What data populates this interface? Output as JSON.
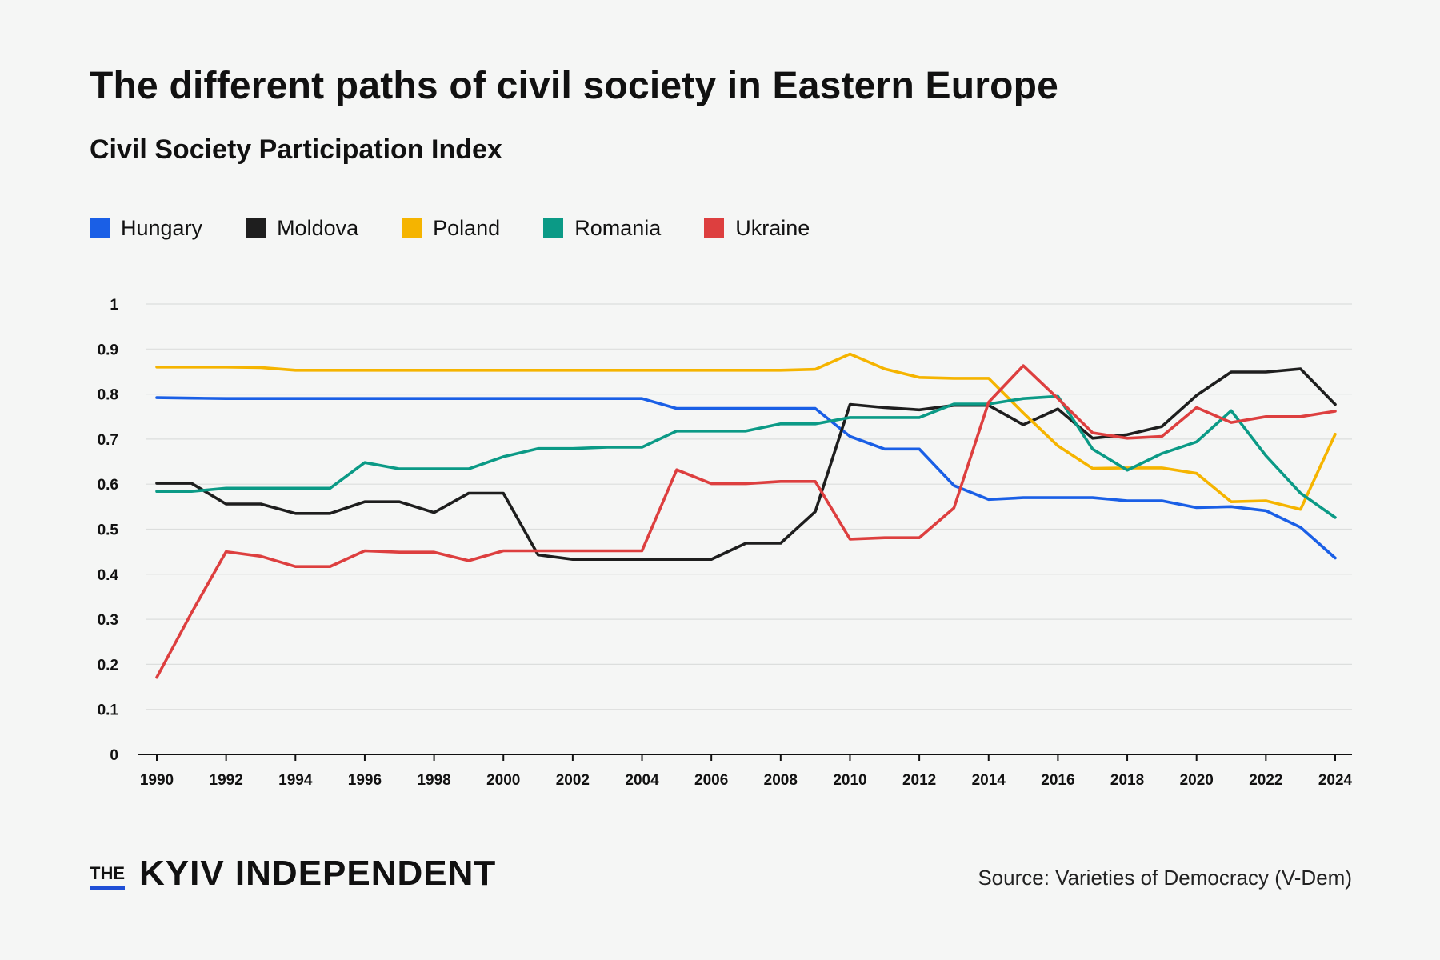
{
  "header": {
    "title": "The different paths of civil society in Eastern Europe",
    "subtitle": "Civil Society Participation Index"
  },
  "footer": {
    "logo_the": "THE",
    "logo_name": "KYIV INDEPENDENT",
    "source": "Source: Varieties of Democracy (V-Dem)"
  },
  "chart_data": {
    "type": "line",
    "title": "Civil Society Participation Index",
    "x": [
      1990,
      1991,
      1992,
      1993,
      1994,
      1995,
      1996,
      1997,
      1998,
      1999,
      2000,
      2001,
      2002,
      2003,
      2004,
      2005,
      2006,
      2007,
      2008,
      2009,
      2010,
      2011,
      2012,
      2013,
      2014,
      2015,
      2016,
      2017,
      2018,
      2019,
      2020,
      2021,
      2022,
      2023,
      2024
    ],
    "xticks": [
      1990,
      1992,
      1994,
      1996,
      1998,
      2000,
      2002,
      2004,
      2006,
      2008,
      2010,
      2012,
      2014,
      2016,
      2018,
      2020,
      2022,
      2024
    ],
    "yticks": [
      {
        "v": 0,
        "label": "0"
      },
      {
        "v": 0.1,
        "label": "0.1"
      },
      {
        "v": 0.2,
        "label": "0.2"
      },
      {
        "v": 0.3,
        "label": "0.3"
      },
      {
        "v": 0.4,
        "label": "0.4"
      },
      {
        "v": 0.5,
        "label": "0.5"
      },
      {
        "v": 0.6,
        "label": "0.6"
      },
      {
        "v": 0.7,
        "label": "0.7"
      },
      {
        "v": 0.8,
        "label": "0.8"
      },
      {
        "v": 0.9,
        "label": "0.9"
      },
      {
        "v": 1,
        "label": "1"
      }
    ],
    "ylim": [
      0,
      1
    ],
    "grid": true,
    "legend_position": "top-left",
    "series": [
      {
        "name": "Hungary",
        "color": "#1a5fe6",
        "values": [
          0.792,
          0.791,
          0.79,
          0.79,
          0.79,
          0.79,
          0.79,
          0.79,
          0.79,
          0.79,
          0.79,
          0.79,
          0.79,
          0.79,
          0.79,
          0.768,
          0.768,
          0.768,
          0.768,
          0.768,
          0.706,
          0.678,
          0.678,
          0.597,
          0.566,
          0.57,
          0.57,
          0.57,
          0.563,
          0.563,
          0.548,
          0.55,
          0.541,
          0.504,
          0.436
        ]
      },
      {
        "name": "Moldova",
        "color": "#1e1e1e",
        "values": [
          0.602,
          0.602,
          0.556,
          0.556,
          0.535,
          0.535,
          0.561,
          0.561,
          0.537,
          0.58,
          0.58,
          0.443,
          0.433,
          0.433,
          0.433,
          0.433,
          0.433,
          0.469,
          0.469,
          0.539,
          0.777,
          0.77,
          0.765,
          0.775,
          0.775,
          0.732,
          0.767,
          0.702,
          0.71,
          0.728,
          0.797,
          0.849,
          0.849,
          0.856,
          0.777
        ]
      },
      {
        "name": "Poland",
        "color": "#f5b400",
        "values": [
          0.86,
          0.86,
          0.86,
          0.859,
          0.853,
          0.853,
          0.853,
          0.853,
          0.853,
          0.853,
          0.853,
          0.853,
          0.853,
          0.853,
          0.853,
          0.853,
          0.853,
          0.853,
          0.853,
          0.855,
          0.889,
          0.856,
          0.837,
          0.835,
          0.835,
          0.758,
          0.685,
          0.635,
          0.636,
          0.636,
          0.624,
          0.561,
          0.563,
          0.544,
          0.711
        ]
      },
      {
        "name": "Romania",
        "color": "#0b9a86",
        "values": [
          0.584,
          0.584,
          0.591,
          0.591,
          0.591,
          0.591,
          0.648,
          0.634,
          0.634,
          0.634,
          0.661,
          0.679,
          0.679,
          0.682,
          0.682,
          0.718,
          0.718,
          0.718,
          0.734,
          0.734,
          0.748,
          0.748,
          0.748,
          0.778,
          0.778,
          0.79,
          0.795,
          0.678,
          0.631,
          0.668,
          0.694,
          0.763,
          0.663,
          0.58,
          0.526
        ]
      },
      {
        "name": "Ukraine",
        "color": "#dd3f3f",
        "values": [
          0.171,
          0.314,
          0.45,
          0.44,
          0.417,
          0.417,
          0.452,
          0.449,
          0.449,
          0.43,
          0.452,
          0.452,
          0.452,
          0.452,
          0.452,
          0.632,
          0.601,
          0.601,
          0.606,
          0.606,
          0.478,
          0.481,
          0.481,
          0.547,
          0.782,
          0.863,
          0.79,
          0.714,
          0.702,
          0.706,
          0.77,
          0.737,
          0.75,
          0.75,
          0.762
        ]
      }
    ]
  }
}
